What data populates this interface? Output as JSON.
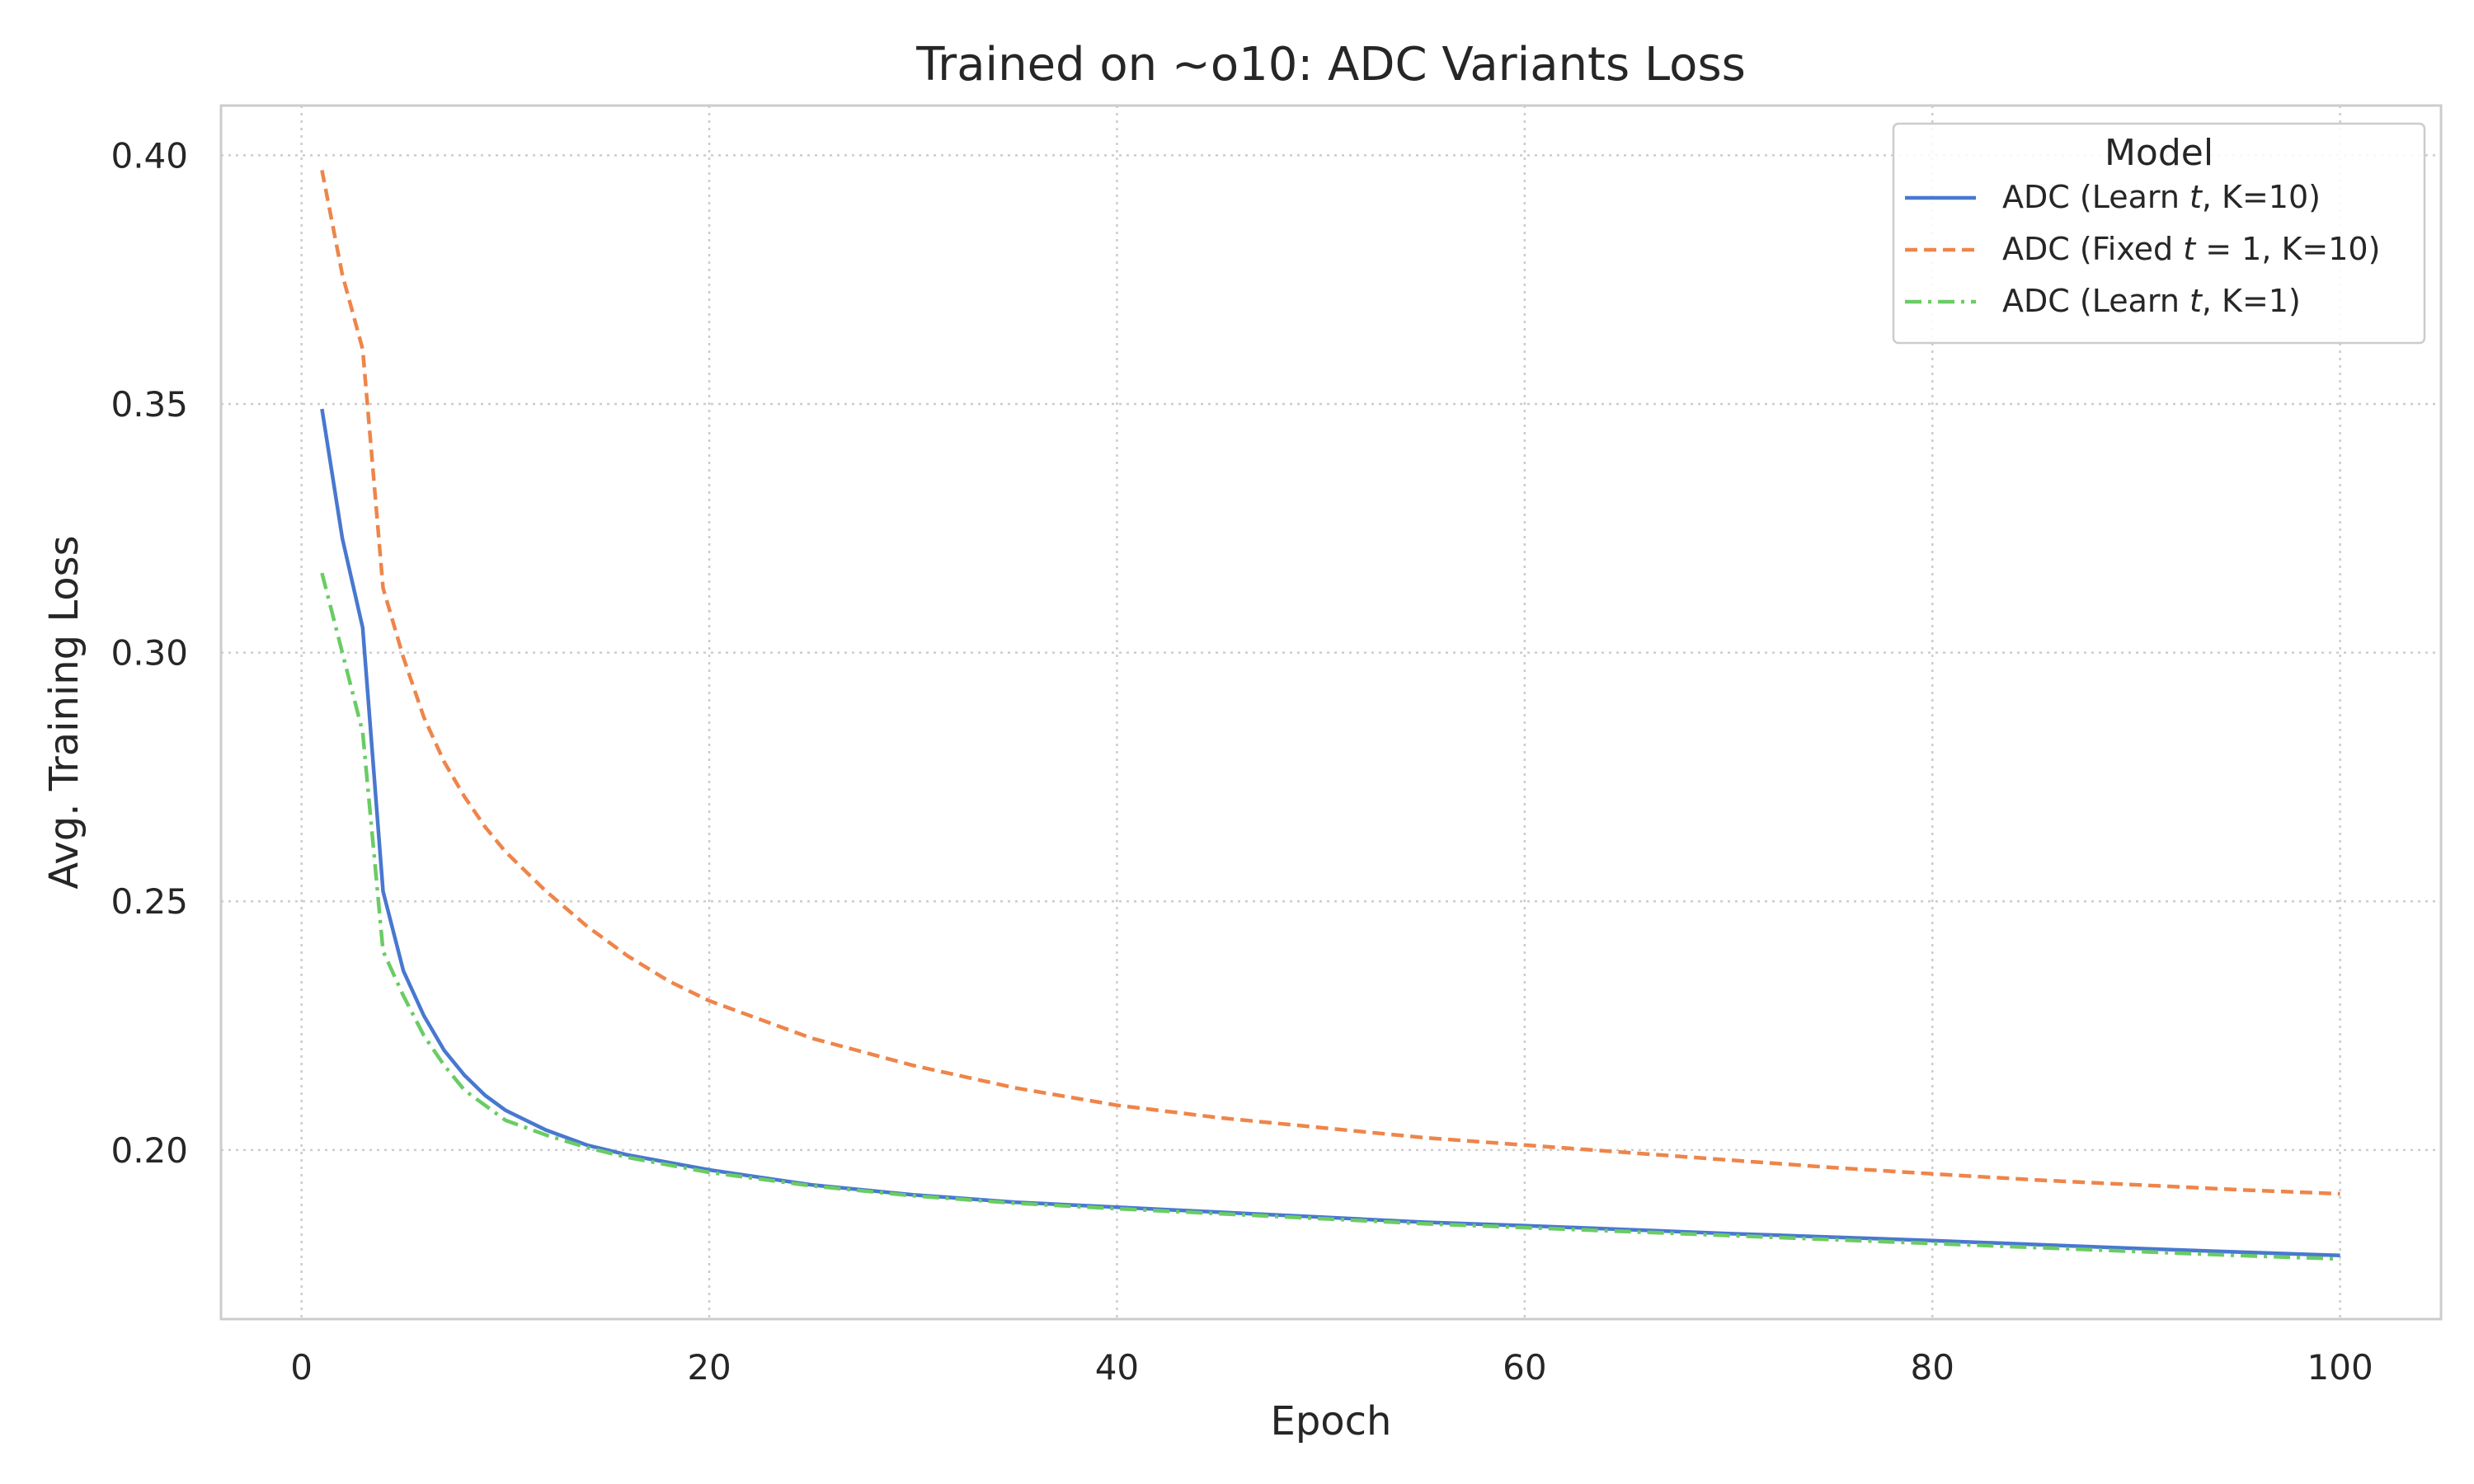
{
  "chart_data": {
    "type": "line",
    "title": "Trained on ~o10: ADC Variants Loss",
    "xlabel": "Epoch",
    "ylabel": "Avg. Training Loss",
    "xlim": [
      -3.95,
      104.95
    ],
    "ylim": [
      0.166,
      0.41
    ],
    "xticks": [
      0,
      20,
      40,
      60,
      80,
      100
    ],
    "xtick_labels": [
      "0",
      "20",
      "40",
      "60",
      "80",
      "100"
    ],
    "yticks": [
      0.2,
      0.25,
      0.3,
      0.35,
      0.4
    ],
    "ytick_labels": [
      "0.20",
      "0.25",
      "0.30",
      "0.35",
      "0.40"
    ],
    "grid": true,
    "legend": {
      "title": "Model",
      "placement": "top-right",
      "entries": [
        {
          "pre": "ADC (Learn ",
          "ital": "t",
          "post": ", K=10)"
        },
        {
          "pre": "ADC (Fixed ",
          "ital": "t",
          "post": " = 1, K=10)"
        },
        {
          "pre": "ADC (Learn ",
          "ital": "t",
          "post": ", K=1)"
        }
      ]
    },
    "series": [
      {
        "name": "ADC (Learn t, K=10)",
        "color": "#4878d0",
        "dash": "solid",
        "x": [
          1,
          2,
          3,
          4,
          5,
          6,
          7,
          8,
          9,
          10,
          12,
          14,
          16,
          18,
          20,
          25,
          30,
          35,
          40,
          45,
          50,
          55,
          60,
          65,
          70,
          75,
          80,
          85,
          90,
          95,
          100
        ],
        "y": [
          0.349,
          0.323,
          0.305,
          0.252,
          0.236,
          0.227,
          0.22,
          0.215,
          0.211,
          0.208,
          0.204,
          0.201,
          0.199,
          0.1975,
          0.196,
          0.193,
          0.191,
          0.1895,
          0.1885,
          0.1875,
          0.1865,
          0.1855,
          0.1848,
          0.184,
          0.1832,
          0.1825,
          0.1818,
          0.181,
          0.1802,
          0.1795,
          0.1788
        ]
      },
      {
        "name": "ADC (Fixed t = 1, K=10)",
        "color": "#ee854a",
        "dash": "dashed",
        "x": [
          1,
          2,
          3,
          4,
          5,
          6,
          7,
          8,
          9,
          10,
          12,
          14,
          16,
          18,
          20,
          25,
          30,
          35,
          40,
          45,
          50,
          55,
          60,
          65,
          70,
          75,
          80,
          85,
          90,
          95,
          100
        ],
        "y": [
          0.397,
          0.376,
          0.361,
          0.313,
          0.299,
          0.287,
          0.278,
          0.271,
          0.265,
          0.26,
          0.252,
          0.245,
          0.239,
          0.234,
          0.23,
          0.2225,
          0.217,
          0.2125,
          0.209,
          0.2065,
          0.2045,
          0.2025,
          0.201,
          0.1995,
          0.198,
          0.1965,
          0.1952,
          0.194,
          0.193,
          0.192,
          0.1912
        ]
      },
      {
        "name": "ADC (Learn t, K=1)",
        "color": "#6acc64",
        "dash": "dashdot",
        "x": [
          1,
          2,
          3,
          4,
          5,
          6,
          7,
          8,
          9,
          10,
          12,
          14,
          16,
          18,
          20,
          25,
          30,
          35,
          40,
          45,
          50,
          55,
          60,
          65,
          70,
          75,
          80,
          85,
          90,
          95,
          100
        ],
        "y": [
          0.316,
          0.3,
          0.284,
          0.24,
          0.231,
          0.223,
          0.217,
          0.212,
          0.209,
          0.206,
          0.203,
          0.2005,
          0.1985,
          0.197,
          0.1955,
          0.1928,
          0.1908,
          0.1893,
          0.1882,
          0.1872,
          0.1862,
          0.1852,
          0.1844,
          0.1836,
          0.1828,
          0.182,
          0.1812,
          0.1804,
          0.1796,
          0.1788,
          0.1781
        ]
      }
    ]
  }
}
